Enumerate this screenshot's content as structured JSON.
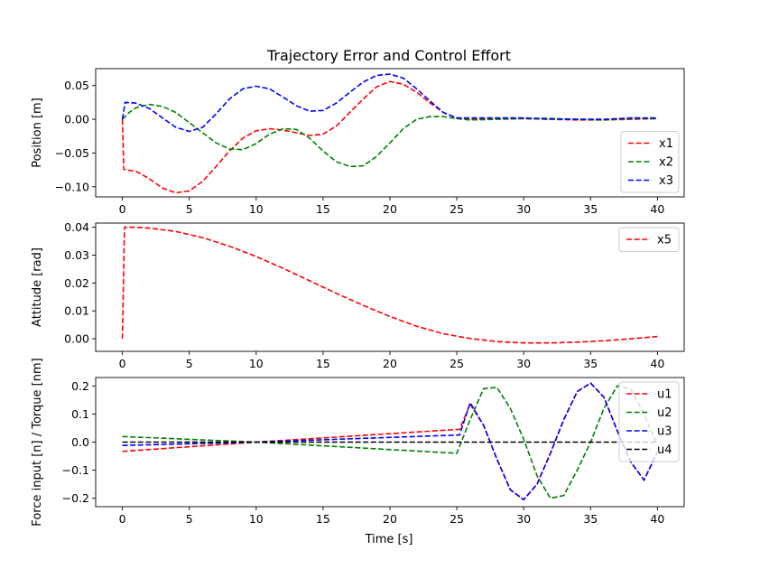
{
  "chart_data": [
    {
      "type": "line",
      "title": "Trajectory Error and Control Effort",
      "xlabel": "",
      "ylabel": "Position [m]",
      "xlim": [
        -2,
        42
      ],
      "ylim": [
        -0.115,
        0.075
      ],
      "xticks": [
        "0",
        "5",
        "10",
        "15",
        "20",
        "25",
        "30",
        "35",
        "40"
      ],
      "yticks": [
        "0.05",
        "0.00",
        "−0.05",
        "−0.10"
      ],
      "legend_position": "lower-right",
      "series": [
        {
          "name": "x1",
          "color": "#ff0000",
          "x": [
            0,
            0.1,
            0.3,
            1,
            2,
            3,
            4,
            5,
            6,
            7,
            8,
            9,
            10,
            11,
            12,
            13,
            14,
            15,
            16,
            17,
            18,
            19,
            20,
            21,
            22,
            23,
            24,
            25,
            26,
            28,
            30,
            32,
            34,
            36,
            38,
            40
          ],
          "y": [
            0.0,
            -0.074,
            -0.075,
            -0.077,
            -0.088,
            -0.102,
            -0.109,
            -0.106,
            -0.092,
            -0.07,
            -0.047,
            -0.028,
            -0.017,
            -0.014,
            -0.016,
            -0.02,
            -0.024,
            -0.022,
            -0.01,
            0.01,
            0.03,
            0.048,
            0.056,
            0.052,
            0.04,
            0.024,
            0.01,
            0.002,
            0.0,
            0.001,
            0.001,
            0.0,
            -0.001,
            -0.001,
            0.0,
            0.001
          ]
        },
        {
          "name": "x2",
          "color": "#008000",
          "x": [
            0,
            0.5,
            1,
            2,
            3,
            4,
            5,
            6,
            7,
            8,
            9,
            10,
            11,
            12,
            13,
            14,
            15,
            16,
            17,
            18,
            19,
            20,
            21,
            22,
            23,
            24,
            25,
            26,
            28,
            30,
            32,
            34,
            36,
            38,
            40
          ],
          "y": [
            0.0,
            0.01,
            0.017,
            0.022,
            0.019,
            0.01,
            -0.005,
            -0.02,
            -0.035,
            -0.044,
            -0.045,
            -0.036,
            -0.022,
            -0.014,
            -0.015,
            -0.028,
            -0.047,
            -0.063,
            -0.07,
            -0.069,
            -0.055,
            -0.035,
            -0.014,
            0.0,
            0.004,
            0.004,
            0.001,
            -0.001,
            0.0,
            0.001,
            0.0,
            0.0,
            -0.001,
            0.001,
            0.001
          ]
        },
        {
          "name": "x3",
          "color": "#0000ff",
          "x": [
            0,
            0.2,
            1,
            2,
            3,
            4,
            5,
            6,
            7,
            8,
            9,
            10,
            11,
            12,
            13,
            14,
            15,
            16,
            17,
            18,
            19,
            20,
            21,
            22,
            23,
            24,
            25,
            26,
            28,
            30,
            32,
            34,
            36,
            38,
            40
          ],
          "y": [
            0.0,
            0.025,
            0.024,
            0.016,
            0.002,
            -0.012,
            -0.018,
            -0.012,
            0.008,
            0.03,
            0.045,
            0.049,
            0.045,
            0.033,
            0.02,
            0.012,
            0.013,
            0.024,
            0.04,
            0.055,
            0.065,
            0.067,
            0.061,
            0.045,
            0.027,
            0.01,
            0.002,
            0.002,
            0.002,
            0.002,
            0.001,
            0.0,
            0.0,
            0.002,
            0.002
          ]
        }
      ]
    },
    {
      "type": "line",
      "title": "",
      "xlabel": "",
      "ylabel": "Attitude [rad]",
      "xlim": [
        -2,
        42
      ],
      "ylim": [
        -0.0045,
        0.0415
      ],
      "xticks": [
        "0",
        "5",
        "10",
        "15",
        "20",
        "25",
        "30",
        "35",
        "40"
      ],
      "yticks": [
        "0.04",
        "0.03",
        "0.02",
        "0.01",
        "0.00"
      ],
      "legend_position": "upper-right",
      "series": [
        {
          "name": "x5",
          "color": "#ff0000",
          "x": [
            0,
            0.15,
            1,
            2,
            4,
            6,
            8,
            10,
            12,
            14,
            16,
            18,
            20,
            22,
            24,
            26,
            28,
            30,
            32,
            34,
            36,
            38,
            40
          ],
          "y": [
            0.0,
            0.04,
            0.04,
            0.0397,
            0.0385,
            0.0363,
            0.0332,
            0.0295,
            0.0253,
            0.0208,
            0.0163,
            0.012,
            0.008,
            0.0045,
            0.0018,
            0.0001,
            -0.001,
            -0.0015,
            -0.0015,
            -0.0012,
            -0.0007,
            0.0,
            0.0008
          ]
        }
      ]
    },
    {
      "type": "line",
      "title": "",
      "xlabel": "Time [s]",
      "ylabel": "Force input [n] / Torque [nm]",
      "xlim": [
        -2,
        42
      ],
      "ylim": [
        -0.23,
        0.23
      ],
      "xticks": [
        "0",
        "5",
        "10",
        "15",
        "20",
        "25",
        "30",
        "35",
        "40"
      ],
      "yticks": [
        "0.2",
        "0.1",
        "0.0",
        "−0.1",
        "−0.2"
      ],
      "legend_position": "upper-right",
      "series": [
        {
          "name": "u1",
          "color": "#ff0000",
          "x": [
            0,
            10,
            25,
            25.2,
            26,
            27,
            28,
            29,
            30,
            31,
            32,
            33,
            34,
            35,
            36,
            37,
            38,
            39,
            40
          ],
          "y": [
            -0.033,
            0.0,
            0.045,
            0.045,
            0.135,
            0.06,
            -0.06,
            -0.17,
            -0.205,
            -0.15,
            -0.04,
            0.08,
            0.18,
            0.21,
            0.16,
            0.04,
            -0.07,
            -0.135,
            -0.035
          ]
        },
        {
          "name": "u2",
          "color": "#008000",
          "x": [
            0,
            10,
            25,
            26,
            27,
            28,
            29,
            30,
            31,
            32,
            33,
            34,
            35,
            36,
            37,
            38,
            39,
            40
          ],
          "y": [
            0.02,
            0.0,
            -0.04,
            0.08,
            0.19,
            0.195,
            0.12,
            0.01,
            -0.12,
            -0.2,
            -0.19,
            -0.1,
            0.0,
            0.12,
            0.2,
            0.19,
            0.1,
            -0.01
          ]
        },
        {
          "name": "u3",
          "color": "#0000ff",
          "x": [
            0,
            10,
            25,
            25.2,
            26,
            27,
            28,
            29,
            30,
            31,
            32,
            33,
            34,
            35,
            36,
            37,
            38,
            39,
            40
          ],
          "y": [
            -0.012,
            0.0,
            0.025,
            0.025,
            0.14,
            0.06,
            -0.06,
            -0.17,
            -0.205,
            -0.15,
            -0.04,
            0.08,
            0.18,
            0.21,
            0.16,
            0.04,
            -0.07,
            -0.135,
            -0.035
          ]
        },
        {
          "name": "u4",
          "color": "#000000",
          "x": [
            0,
            40
          ],
          "y": [
            0.0,
            0.0
          ]
        }
      ]
    }
  ]
}
